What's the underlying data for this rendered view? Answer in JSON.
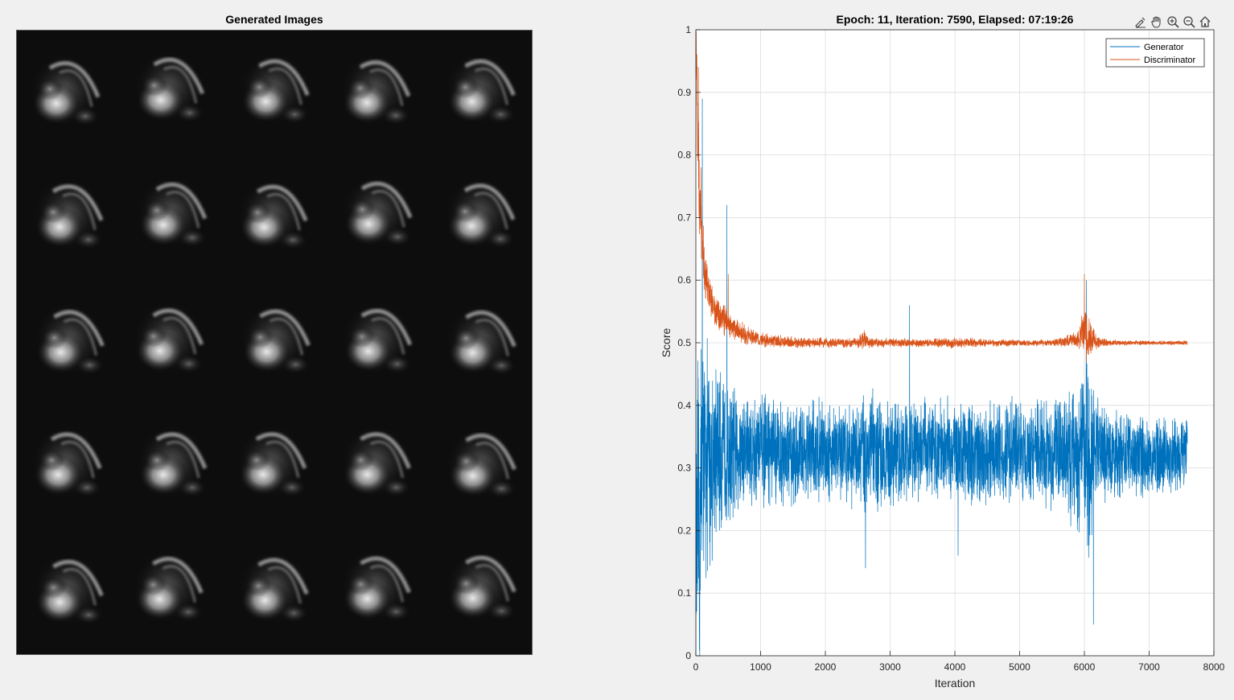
{
  "images_panel": {
    "title": "Generated Images",
    "rows": 5,
    "cols": 5
  },
  "toolbar": {
    "items": [
      {
        "name": "brush-icon"
      },
      {
        "name": "pan-hand-icon"
      },
      {
        "name": "zoom-in-icon"
      },
      {
        "name": "zoom-out-icon"
      },
      {
        "name": "home-icon"
      }
    ]
  },
  "chart_data": {
    "type": "line",
    "title": "Epoch: 11, Iteration: 7590, Elapsed: 07:19:26",
    "xlabel": "Iteration",
    "ylabel": "Score",
    "xlim": [
      0,
      8000
    ],
    "ylim": [
      0,
      1
    ],
    "xticks": [
      0,
      1000,
      2000,
      3000,
      4000,
      5000,
      6000,
      7000,
      8000
    ],
    "yticks": [
      0,
      0.1,
      0.2,
      0.3,
      0.4,
      0.5,
      0.6,
      0.7,
      0.8,
      0.9,
      1
    ],
    "grid": true,
    "legend_position": "top-right",
    "last_iteration": 7590,
    "series": [
      {
        "name": "Generator",
        "color": "#0072BD",
        "x": [
          0,
          50,
          100,
          200,
          300,
          500,
          700,
          1000,
          1500,
          2000,
          2500,
          2600,
          3000,
          3500,
          4000,
          4500,
          5000,
          5500,
          6000,
          6050,
          6100,
          6150,
          6500,
          7000,
          7590
        ],
        "y": [
          0.15,
          0.22,
          0.3,
          0.31,
          0.32,
          0.32,
          0.33,
          0.33,
          0.32,
          0.33,
          0.32,
          0.33,
          0.32,
          0.33,
          0.33,
          0.32,
          0.33,
          0.32,
          0.33,
          0.3,
          0.32,
          0.33,
          0.32,
          0.32,
          0.32
        ],
        "spread": [
          0.2,
          0.35,
          0.25,
          0.2,
          0.16,
          0.13,
          0.11,
          0.1,
          0.09,
          0.09,
          0.09,
          0.12,
          0.09,
          0.09,
          0.09,
          0.09,
          0.09,
          0.09,
          0.15,
          0.22,
          0.16,
          0.1,
          0.08,
          0.07,
          0.07
        ],
        "extremes": [
          [
            100,
            0.89
          ],
          [
            480,
            0.72
          ],
          [
            3300,
            0.56
          ],
          [
            2620,
            0.14
          ],
          [
            4050,
            0.16
          ],
          [
            6030,
            0.09
          ],
          [
            6140,
            0.05
          ],
          [
            6030,
            0.6
          ],
          [
            60,
            0.0
          ]
        ]
      },
      {
        "name": "Discriminator",
        "color": "#D95319",
        "x": [
          0,
          30,
          60,
          100,
          200,
          300,
          500,
          700,
          1000,
          1500,
          2000,
          2500,
          2600,
          2700,
          3000,
          3500,
          4000,
          4500,
          5000,
          5500,
          5900,
          6000,
          6100,
          6200,
          6500,
          7000,
          7590
        ],
        "y": [
          1.0,
          0.85,
          0.72,
          0.65,
          0.58,
          0.55,
          0.53,
          0.515,
          0.505,
          0.5,
          0.5,
          0.5,
          0.505,
          0.5,
          0.5,
          0.5,
          0.5,
          0.5,
          0.5,
          0.5,
          0.505,
          0.52,
          0.51,
          0.5,
          0.5,
          0.5,
          0.5
        ],
        "spread": [
          0.05,
          0.1,
          0.08,
          0.06,
          0.04,
          0.03,
          0.025,
          0.02,
          0.013,
          0.01,
          0.009,
          0.009,
          0.02,
          0.01,
          0.008,
          0.008,
          0.01,
          0.007,
          0.006,
          0.006,
          0.015,
          0.05,
          0.04,
          0.01,
          0.005,
          0.004,
          0.004
        ],
        "extremes": [
          [
            40,
            0.94
          ],
          [
            80,
            0.78
          ],
          [
            500,
            0.61
          ],
          [
            6000,
            0.61
          ],
          [
            6030,
            0.47
          ]
        ]
      }
    ]
  }
}
